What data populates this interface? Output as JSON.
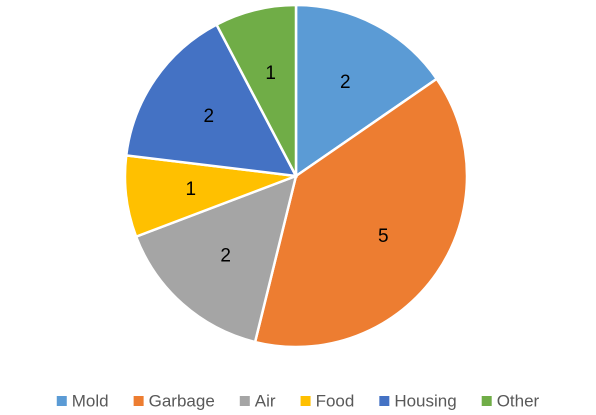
{
  "chart_data": {
    "type": "pie",
    "categories": [
      "Mold",
      "Garbage",
      "Air",
      "Food",
      "Housing",
      "Other"
    ],
    "values": [
      2,
      5,
      2,
      1,
      2,
      1
    ],
    "colors": [
      "#5b9bd5",
      "#ed7d31",
      "#a5a5a5",
      "#ffc000",
      "#4472c4",
      "#70ad47"
    ],
    "legend": "bottom"
  }
}
